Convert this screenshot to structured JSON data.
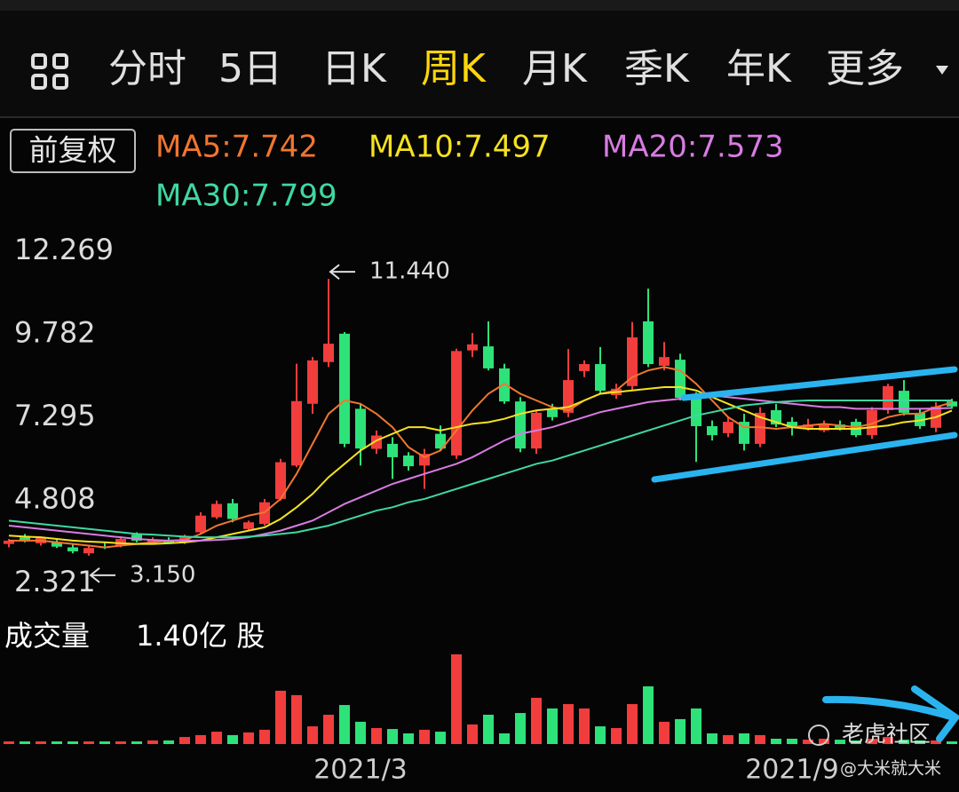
{
  "tabs": [
    "分时",
    "5日",
    "日K",
    "周K",
    "月K",
    "季K",
    "年K",
    "更多"
  ],
  "adjust": "前复权",
  "watermark": "老虎社区",
  "author": "@大米就大米",
  "chart_data": [
    {
      "type": "candlestick",
      "categories": [
        null,
        null,
        null,
        null,
        null,
        null,
        null,
        null,
        null,
        null,
        null,
        null,
        null,
        null,
        null,
        null,
        null,
        null,
        null,
        null,
        null,
        null,
        "2021/3",
        null,
        null,
        null,
        null,
        null,
        null,
        null,
        null,
        null,
        null,
        null,
        null,
        null,
        null,
        null,
        null,
        null,
        null,
        null,
        null,
        null,
        null,
        null,
        null,
        null,
        null,
        "2021/9",
        null,
        null,
        null,
        null,
        null,
        null,
        null,
        null,
        null,
        null
      ],
      "open": [
        3.5,
        3.7,
        3.52,
        3.55,
        3.4,
        3.22,
        3.42,
        3.45,
        3.78,
        3.55,
        3.62,
        3.55,
        3.85,
        4.3,
        4.72,
        3.95,
        4.1,
        4.85,
        5.85,
        7.7,
        8.95,
        9.8,
        7.55,
        6.35,
        6.5,
        6.15,
        5.85,
        6.8,
        6.15,
        9.3,
        9.42,
        8.76,
        7.77,
        6.36,
        7.56,
        7.43,
        8.68,
        8.89,
        7.96,
        8.23,
        10.17,
        8.84,
        9.02,
        7.96,
        7.03,
        6.82,
        7.16,
        6.5,
        7.51,
        7.16,
        6.98,
        6.9,
        7.08,
        7.16,
        6.76,
        7.51,
        8.09,
        7.43,
        6.98,
        7.77
      ],
      "high": [
        3.65,
        3.8,
        3.72,
        3.62,
        3.48,
        3.45,
        3.55,
        3.72,
        3.85,
        3.7,
        3.7,
        3.78,
        4.45,
        4.8,
        4.85,
        4.2,
        4.85,
        6.05,
        8.9,
        9.1,
        11.44,
        9.85,
        7.7,
        6.9,
        6.7,
        6.25,
        6.35,
        7.05,
        9.35,
        9.82,
        10.17,
        8.9,
        7.9,
        7.5,
        7.7,
        9.34,
        9.0,
        9.4,
        8.3,
        10.15,
        11.15,
        9.55,
        9.2,
        8.05,
        7.2,
        7.3,
        7.4,
        7.6,
        7.7,
        7.3,
        7.25,
        7.2,
        7.2,
        7.25,
        7.6,
        8.3,
        8.41,
        7.55,
        7.75,
        7.85
      ],
      "low": [
        3.4,
        3.55,
        3.45,
        3.38,
        3.22,
        3.15,
        3.35,
        3.4,
        3.55,
        3.48,
        3.5,
        3.5,
        3.8,
        4.25,
        4.15,
        3.9,
        4.05,
        4.8,
        5.8,
        7.4,
        8.8,
        6.4,
        5.85,
        6.2,
        5.45,
        5.7,
        5.15,
        6.3,
        6.05,
        9.1,
        8.7,
        7.7,
        6.25,
        6.2,
        7.2,
        7.3,
        8.5,
        8.0,
        7.85,
        8.1,
        8.8,
        8.7,
        7.8,
        5.96,
        6.6,
        6.7,
        6.3,
        6.4,
        7.0,
        6.75,
        6.9,
        6.85,
        6.9,
        6.7,
        6.65,
        7.4,
        7.35,
        6.95,
        6.85,
        7.55
      ],
      "close": [
        3.6,
        3.58,
        3.68,
        3.42,
        3.28,
        3.38,
        3.38,
        3.65,
        3.6,
        3.62,
        3.52,
        3.72,
        4.35,
        4.7,
        4.25,
        4.15,
        4.75,
        5.95,
        7.78,
        9.0,
        9.5,
        6.5,
        6.36,
        6.75,
        6.1,
        5.83,
        6.2,
        6.36,
        9.28,
        9.48,
        8.76,
        7.77,
        6.36,
        7.43,
        7.3,
        8.41,
        8.89,
        8.09,
        8.15,
        9.69,
        8.89,
        9.1,
        7.88,
        7.03,
        6.76,
        7.16,
        6.5,
        7.43,
        7.08,
        6.98,
        7.08,
        7.08,
        6.98,
        6.76,
        7.51,
        8.23,
        7.43,
        7.03,
        7.62,
        7.62
      ],
      "up_color": "#f23d3d",
      "down_color": "#2ee27a",
      "ylim": [
        2.321,
        12.269
      ],
      "yticks": [
        12.269,
        9.782,
        7.295,
        4.808,
        2.321
      ],
      "series": [
        {
          "name": "MA5:7.742",
          "color": "#f2762e",
          "values": [
            3.6,
            3.6,
            3.6,
            3.55,
            3.5,
            3.45,
            3.4,
            3.45,
            3.5,
            3.55,
            3.6,
            3.62,
            3.8,
            4.05,
            4.2,
            4.35,
            4.45,
            4.85,
            5.6,
            6.5,
            7.4,
            7.8,
            7.7,
            7.4,
            7.0,
            6.4,
            6.1,
            6.3,
            6.9,
            7.5,
            8.0,
            8.3,
            8.0,
            7.8,
            7.6,
            7.5,
            7.8,
            8.0,
            8.1,
            8.5,
            8.7,
            8.8,
            8.7,
            8.3,
            7.8,
            7.3,
            7.0,
            7.0,
            6.95,
            7.0,
            7.05,
            7.1,
            7.05,
            7.0,
            7.1,
            7.3,
            7.4,
            7.4,
            7.6,
            7.742
          ]
        },
        {
          "name": "MA10:7.497",
          "color": "#f5e21f",
          "values": [
            3.75,
            3.72,
            3.7,
            3.65,
            3.6,
            3.57,
            3.55,
            3.52,
            3.5,
            3.5,
            3.52,
            3.55,
            3.6,
            3.7,
            3.8,
            3.9,
            4.0,
            4.25,
            4.6,
            5.0,
            5.5,
            5.9,
            6.3,
            6.6,
            6.8,
            7.0,
            7.0,
            6.9,
            7.0,
            7.1,
            7.15,
            7.25,
            7.4,
            7.5,
            7.55,
            7.6,
            7.8,
            8.0,
            8.05,
            8.1,
            8.15,
            8.2,
            8.2,
            8.1,
            7.9,
            7.7,
            7.5,
            7.3,
            7.15,
            7.0,
            6.95,
            6.95,
            6.95,
            6.95,
            7.0,
            7.05,
            7.15,
            7.2,
            7.3,
            7.497
          ]
        },
        {
          "name": "MA20:7.573",
          "color": "#d87ce2",
          "values": [
            4.05,
            4.0,
            3.95,
            3.9,
            3.85,
            3.8,
            3.75,
            3.7,
            3.65,
            3.62,
            3.6,
            3.6,
            3.6,
            3.62,
            3.65,
            3.7,
            3.8,
            3.9,
            4.05,
            4.2,
            4.45,
            4.7,
            4.9,
            5.1,
            5.3,
            5.45,
            5.6,
            5.75,
            5.9,
            6.1,
            6.35,
            6.6,
            6.8,
            6.9,
            7.0,
            7.15,
            7.3,
            7.45,
            7.55,
            7.65,
            7.75,
            7.8,
            7.85,
            7.9,
            7.95,
            7.9,
            7.85,
            7.8,
            7.75,
            7.7,
            7.65,
            7.6,
            7.6,
            7.55,
            7.55,
            7.55,
            7.55,
            7.55,
            7.56,
            7.573
          ]
        },
        {
          "name": "MA30:7.799",
          "color": "#3fd8a2",
          "values": [
            4.2,
            4.15,
            4.1,
            4.05,
            4.0,
            3.95,
            3.9,
            3.85,
            3.8,
            3.78,
            3.75,
            3.72,
            3.7,
            3.7,
            3.7,
            3.72,
            3.75,
            3.8,
            3.85,
            3.95,
            4.05,
            4.2,
            4.35,
            4.5,
            4.6,
            4.75,
            4.85,
            5.0,
            5.15,
            5.3,
            5.45,
            5.6,
            5.75,
            5.9,
            6.0,
            6.15,
            6.3,
            6.45,
            6.6,
            6.75,
            6.9,
            7.05,
            7.2,
            7.35,
            7.45,
            7.55,
            7.65,
            7.7,
            7.75,
            7.78,
            7.8,
            7.8,
            7.8,
            7.8,
            7.8,
            7.8,
            7.8,
            7.8,
            7.8,
            7.799
          ]
        }
      ],
      "annotations": [
        {
          "value": 11.44,
          "label": "11.440"
        },
        {
          "value": 3.15,
          "label": "3.150"
        }
      ]
    },
    {
      "type": "bar",
      "title": "成交量",
      "value_text": "1.40亿 股",
      "values": [
        1.4,
        1.4,
        1.4,
        1.4,
        1.4,
        1.4,
        1.4,
        1.4,
        1.4,
        1.9,
        1.9,
        3.7,
        4.7,
        6.5,
        4.7,
        6.1,
        7.5,
        28.0,
        25.7,
        9.3,
        15.4,
        20.5,
        11.7,
        8.4,
        7.9,
        5.6,
        7.5,
        6.5,
        47.1,
        10.3,
        15.4,
        5.6,
        16.3,
        24.3,
        18.7,
        21.0,
        18.7,
        9.3,
        8.4,
        21.0,
        30.3,
        11.7,
        13.1,
        18.7,
        5.6,
        4.7,
        5.6,
        4.7,
        2.8,
        2.8,
        2.3,
        2.8,
        2.3,
        1.9,
        2.8,
        3.7,
        2.3,
        1.9,
        1.9,
        1.4
      ]
    }
  ]
}
